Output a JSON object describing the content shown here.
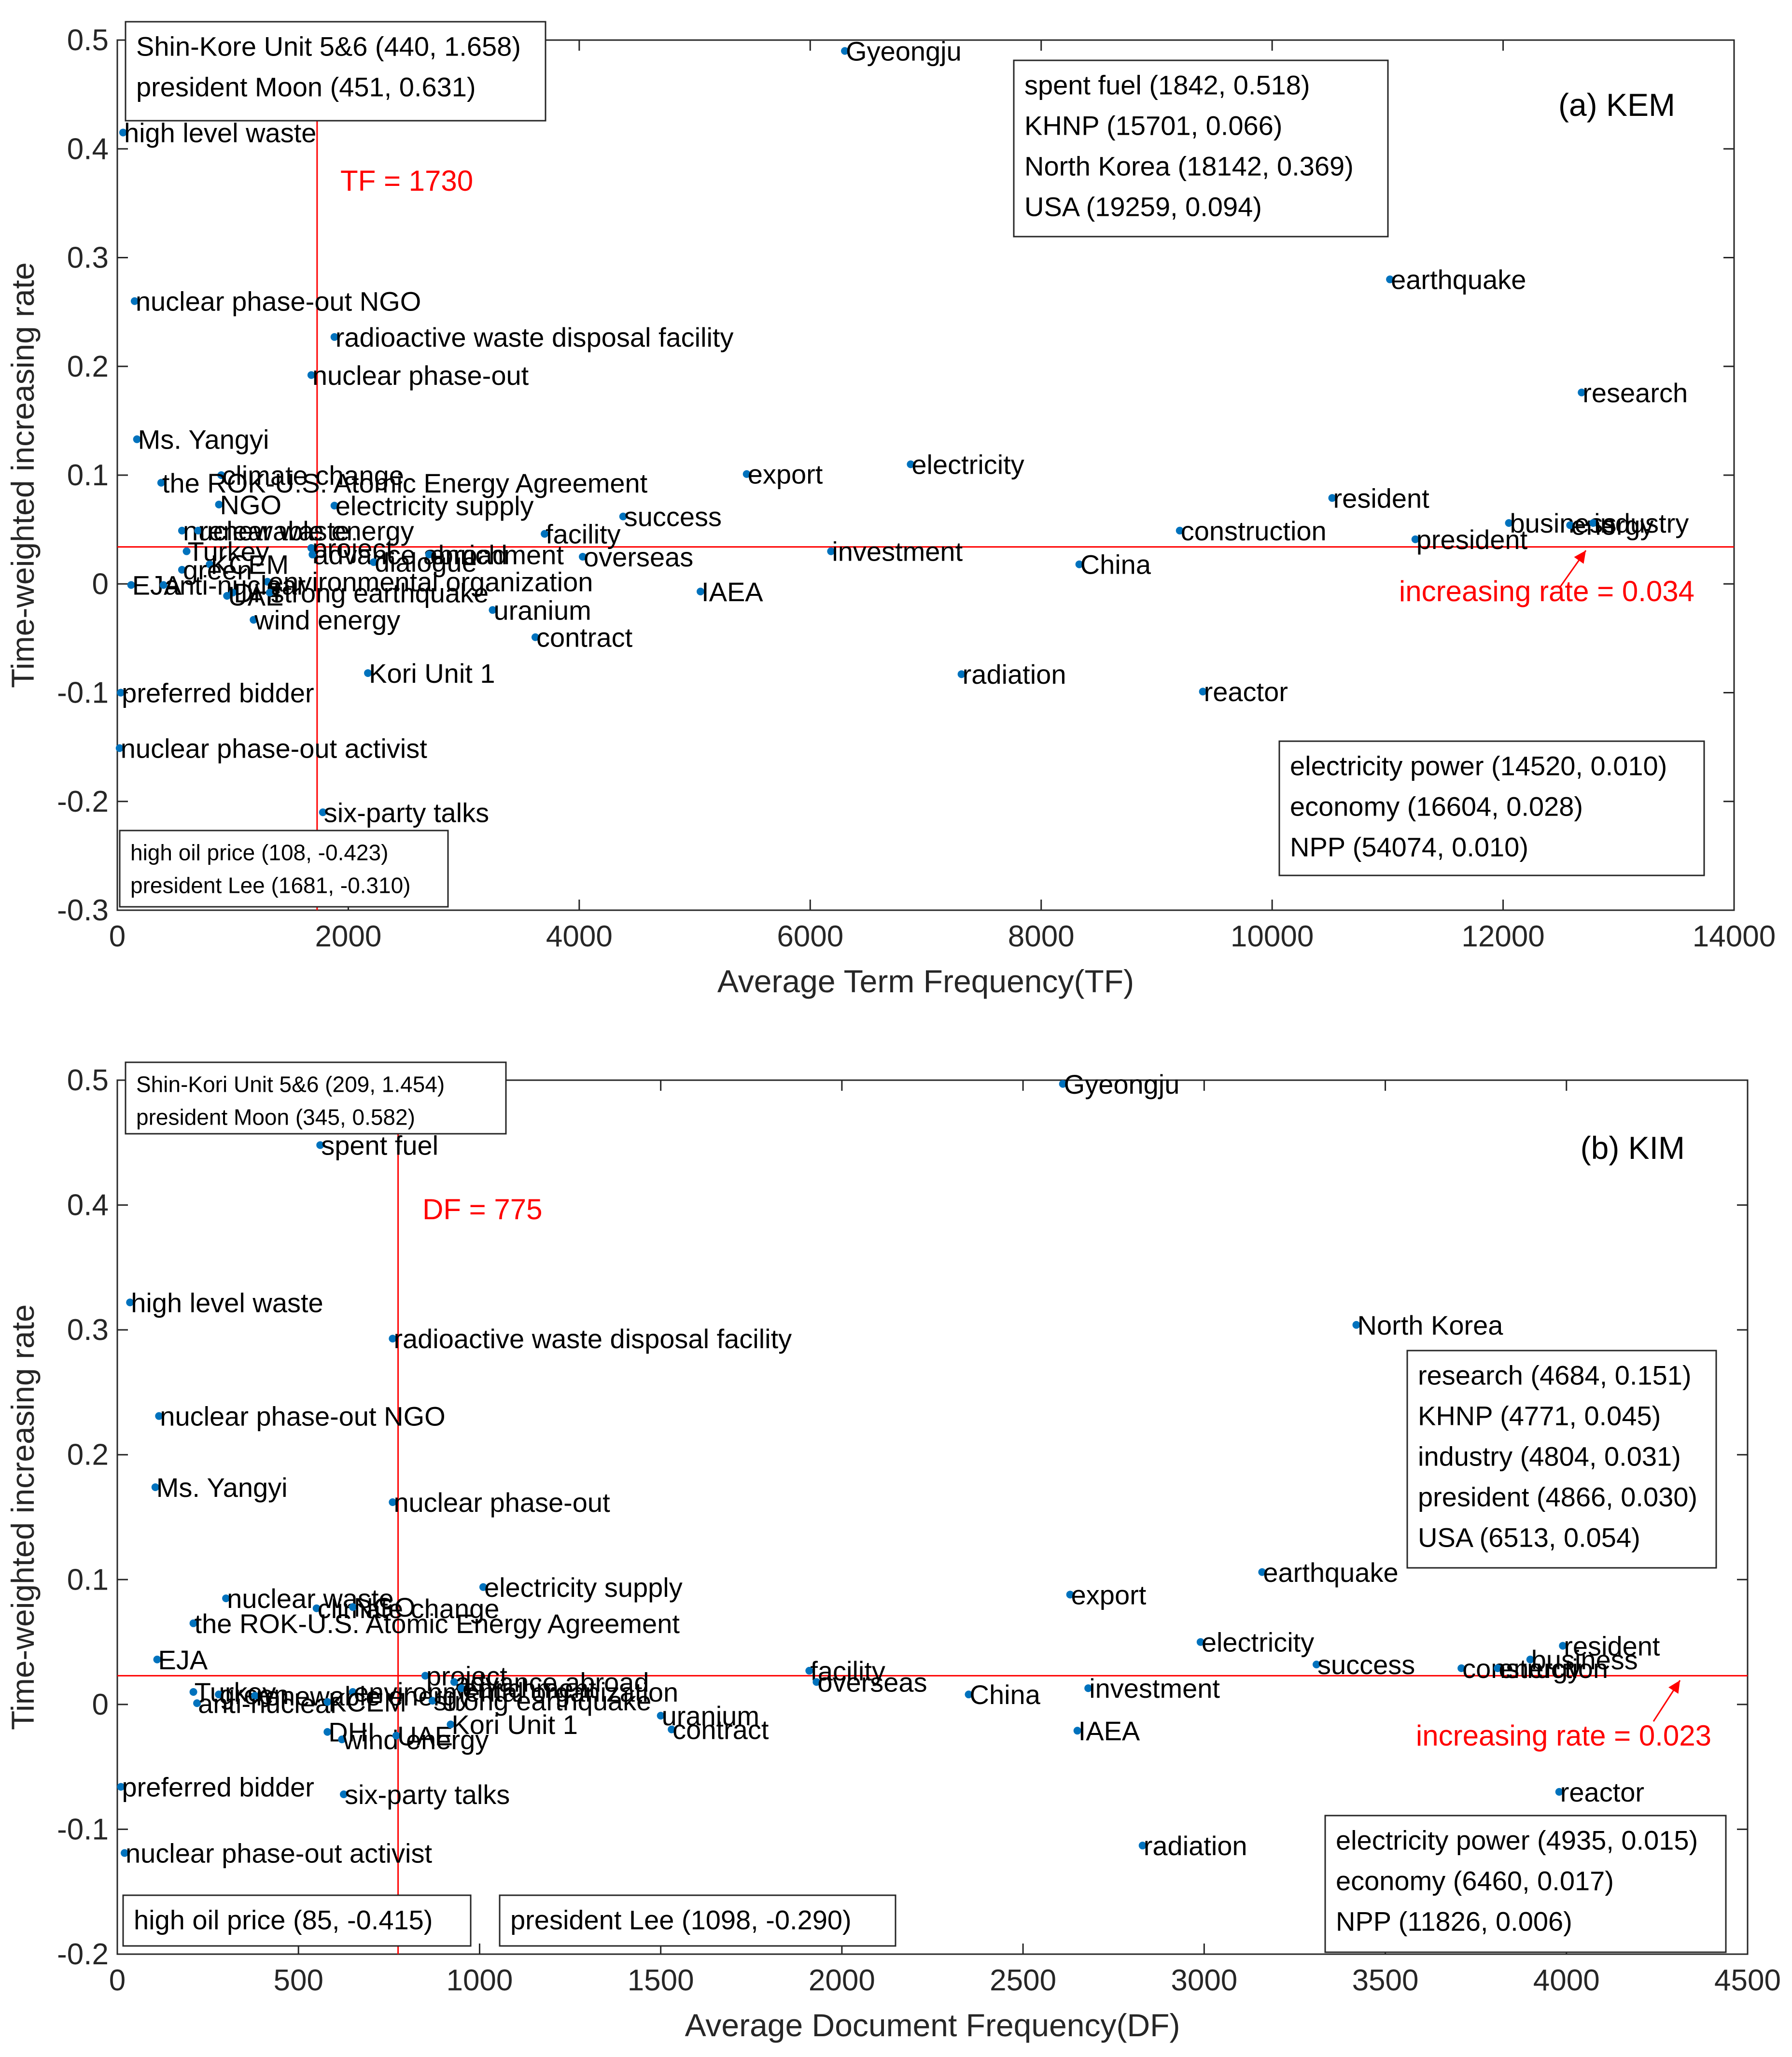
{
  "chart_data": [
    {
      "type": "scatter",
      "panel_label": "(a) KEM",
      "xlabel": "Average Term Frequency(TF)",
      "ylabel": "Time-weighted increasing rate",
      "xlim": [
        0,
        14000
      ],
      "ylim": [
        -0.3,
        0.5
      ],
      "xticks": [
        0,
        2000,
        4000,
        6000,
        8000,
        10000,
        12000,
        14000
      ],
      "yticks": [
        -0.3,
        -0.2,
        -0.1,
        0,
        0.1,
        0.2,
        0.3,
        0.4,
        0.5
      ],
      "ref_x": 1730,
      "ref_x_label": "TF = 1730",
      "ref_y": 0.034,
      "ref_y_label": "increasing rate = 0.034",
      "points": [
        {
          "label": "Gyeongju",
          "x": 6300,
          "y": 0.49
        },
        {
          "label": "high level waste",
          "x": 50,
          "y": 0.415
        },
        {
          "label": "nuclear phase-out NGO",
          "x": 150,
          "y": 0.26
        },
        {
          "label": "radioactive waste disposal facility",
          "x": 1880,
          "y": 0.227
        },
        {
          "label": "nuclear phase-out",
          "x": 1680,
          "y": 0.192
        },
        {
          "label": "Ms. Yangyi",
          "x": 170,
          "y": 0.133
        },
        {
          "label": "climate change",
          "x": 900,
          "y": 0.1
        },
        {
          "label": "the ROK-U.S. Atomic Energy Agreement",
          "x": 380,
          "y": 0.093
        },
        {
          "label": "NGO",
          "x": 880,
          "y": 0.073
        },
        {
          "label": "electricity supply",
          "x": 1880,
          "y": 0.072
        },
        {
          "label": "nuclear waste",
          "x": 560,
          "y": 0.049
        },
        {
          "label": "renewable energy",
          "x": 700,
          "y": 0.049
        },
        {
          "label": "project",
          "x": 1680,
          "y": 0.033
        },
        {
          "label": "Turkey",
          "x": 600,
          "y": 0.03
        },
        {
          "label": "advance abroad",
          "x": 1690,
          "y": 0.027
        },
        {
          "label": "enrichment",
          "x": 2700,
          "y": 0.027
        },
        {
          "label": "KCEM",
          "x": 800,
          "y": 0.018
        },
        {
          "label": "green",
          "x": 560,
          "y": 0.013
        },
        {
          "label": "dialogue",
          "x": 2220,
          "y": 0.02
        },
        {
          "label": "environmental organization",
          "x": 1300,
          "y": 0.002
        },
        {
          "label": "EJA",
          "x": 120,
          "y": -0.001
        },
        {
          "label": "anti-nuclear",
          "x": 400,
          "y": -0.001
        },
        {
          "label": "DHI",
          "x": 1000,
          "y": -0.008
        },
        {
          "label": "UAE",
          "x": 950,
          "y": -0.011
        },
        {
          "label": "strong earthquake",
          "x": 1320,
          "y": -0.008
        },
        {
          "label": "wind energy",
          "x": 1180,
          "y": -0.033
        },
        {
          "label": "success",
          "x": 4380,
          "y": 0.062
        },
        {
          "label": "facility",
          "x": 3700,
          "y": 0.046
        },
        {
          "label": "overseas",
          "x": 4030,
          "y": 0.025
        },
        {
          "label": "uranium",
          "x": 3250,
          "y": -0.024
        },
        {
          "label": "contract",
          "x": 3620,
          "y": -0.049
        },
        {
          "label": "Kori Unit 1",
          "x": 2170,
          "y": -0.082
        },
        {
          "label": "IAEA",
          "x": 5050,
          "y": -0.007
        },
        {
          "label": "export",
          "x": 5450,
          "y": 0.101
        },
        {
          "label": "investment",
          "x": 6180,
          "y": 0.03
        },
        {
          "label": "electricity",
          "x": 6870,
          "y": 0.11
        },
        {
          "label": "radiation",
          "x": 7310,
          "y": -0.083
        },
        {
          "label": "China",
          "x": 8330,
          "y": 0.018
        },
        {
          "label": "construction",
          "x": 9200,
          "y": 0.049
        },
        {
          "label": "reactor",
          "x": 9400,
          "y": -0.099
        },
        {
          "label": "earthquake",
          "x": 11020,
          "y": 0.28
        },
        {
          "label": "resident",
          "x": 10520,
          "y": 0.079
        },
        {
          "label": "president",
          "x": 11240,
          "y": 0.041
        },
        {
          "label": "business",
          "x": 12050,
          "y": 0.056
        },
        {
          "label": "energy",
          "x": 12580,
          "y": 0.054
        },
        {
          "label": "industry",
          "x": 12780,
          "y": 0.056
        },
        {
          "label": "research",
          "x": 12680,
          "y": 0.176
        },
        {
          "label": "preferred bidder",
          "x": 30,
          "y": -0.1
        },
        {
          "label": "nuclear phase-out activist",
          "x": 20,
          "y": -0.151
        },
        {
          "label": "six-party talks",
          "x": 1780,
          "y": -0.21
        }
      ],
      "boxes": [
        {
          "lines": [
            "Shin-Kore Unit 5&6 (440, 1.658)",
            "president Moon (451, 0.631)"
          ]
        },
        {
          "lines": [
            "spent fuel (1842, 0.518)",
            "KHNP (15701, 0.066)",
            "North Korea (18142, 0.369)",
            "USA (19259, 0.094)"
          ]
        },
        {
          "lines": [
            "electricity power (14520, 0.010)",
            "economy (16604, 0.028)",
            "NPP (54074, 0.010)"
          ]
        },
        {
          "lines": [
            "high oil price (108, -0.423)",
            "president Lee (1681, -0.310)"
          ]
        }
      ]
    },
    {
      "type": "scatter",
      "panel_label": "(b) KIM",
      "xlabel": "Average Document Frequency(DF)",
      "ylabel": "Time-weighted increasing rate",
      "xlim": [
        0,
        4500
      ],
      "ylim": [
        -0.2,
        0.5
      ],
      "xticks": [
        0,
        500,
        1000,
        1500,
        2000,
        2500,
        3000,
        3500,
        4000,
        4500
      ],
      "yticks": [
        -0.2,
        -0.1,
        0,
        0.1,
        0.2,
        0.3,
        0.4,
        0.5
      ],
      "ref_x": 775,
      "ref_x_label": "DF = 775",
      "ref_y": 0.023,
      "ref_y_label": "increasing rate = 0.023",
      "points": [
        {
          "label": "Gyeongju",
          "x": 2610,
          "y": 0.497
        },
        {
          "label": "spent fuel",
          "x": 560,
          "y": 0.448
        },
        {
          "label": "high level waste",
          "x": 35,
          "y": 0.322
        },
        {
          "label": "radioactive waste disposal facility",
          "x": 760,
          "y": 0.293
        },
        {
          "label": "nuclear phase-out NGO",
          "x": 115,
          "y": 0.231
        },
        {
          "label": "Ms. Yangyi",
          "x": 105,
          "y": 0.174
        },
        {
          "label": "nuclear phase-out",
          "x": 760,
          "y": 0.162
        },
        {
          "label": "electricity supply",
          "x": 1010,
          "y": 0.094
        },
        {
          "label": "nuclear waste",
          "x": 300,
          "y": 0.085
        },
        {
          "label": "climate change",
          "x": 550,
          "y": 0.077
        },
        {
          "label": "NGO",
          "x": 650,
          "y": 0.078
        },
        {
          "label": "the ROK-U.S. Atomic Energy Agreement",
          "x": 210,
          "y": 0.065
        },
        {
          "label": "EJA",
          "x": 110,
          "y": 0.036
        },
        {
          "label": "project",
          "x": 850,
          "y": 0.023
        },
        {
          "label": "advance abroad",
          "x": 930,
          "y": 0.018
        },
        {
          "label": "Turkey",
          "x": 210,
          "y": 0.01
        },
        {
          "label": "green",
          "x": 280,
          "y": 0.008
        },
        {
          "label": "renewable energy",
          "x": 380,
          "y": 0.007
        },
        {
          "label": "environmental organization",
          "x": 650,
          "y": 0.01
        },
        {
          "label": "enrichment",
          "x": 950,
          "y": 0.013
        },
        {
          "label": "anti-nuclear",
          "x": 220,
          "y": 0.001
        },
        {
          "label": "KCEM",
          "x": 580,
          "y": 0.002
        },
        {
          "label": "strong earthquake",
          "x": 870,
          "y": 0.003
        },
        {
          "label": "DHI",
          "x": 580,
          "y": -0.022
        },
        {
          "label": "wind energy",
          "x": 620,
          "y": -0.028
        },
        {
          "label": "UAE",
          "x": 770,
          "y": -0.025
        },
        {
          "label": "Kori Unit 1",
          "x": 920,
          "y": -0.016
        },
        {
          "label": "uranium",
          "x": 1500,
          "y": -0.009
        },
        {
          "label": "contract",
          "x": 1530,
          "y": -0.02
        },
        {
          "label": "facility",
          "x": 1910,
          "y": 0.027
        },
        {
          "label": "overseas",
          "x": 1930,
          "y": 0.018
        },
        {
          "label": "China",
          "x": 2350,
          "y": 0.008
        },
        {
          "label": "export",
          "x": 2630,
          "y": 0.088
        },
        {
          "label": "investment",
          "x": 2680,
          "y": 0.013
        },
        {
          "label": "IAEA",
          "x": 2650,
          "y": -0.021
        },
        {
          "label": "radiation",
          "x": 2830,
          "y": -0.113
        },
        {
          "label": "electricity",
          "x": 2990,
          "y": 0.05
        },
        {
          "label": "earthquake",
          "x": 3160,
          "y": 0.106
        },
        {
          "label": "success",
          "x": 3310,
          "y": 0.032
        },
        {
          "label": "North Korea",
          "x": 3420,
          "y": 0.304
        },
        {
          "label": "construction",
          "x": 3710,
          "y": 0.029
        },
        {
          "label": "energy",
          "x": 3810,
          "y": 0.029
        },
        {
          "label": "business",
          "x": 3900,
          "y": 0.036
        },
        {
          "label": "resident",
          "x": 3990,
          "y": 0.047
        },
        {
          "label": "reactor",
          "x": 3980,
          "y": -0.07
        },
        {
          "label": "preferred bidder",
          "x": 10,
          "y": -0.066
        },
        {
          "label": "nuclear phase-out activist",
          "x": 20,
          "y": -0.119
        },
        {
          "label": "six-party talks",
          "x": 625,
          "y": -0.072
        }
      ],
      "boxes": [
        {
          "lines": [
            "Shin-Kori Unit 5&6 (209, 1.454)",
            "president Moon (345, 0.582)"
          ]
        },
        {
          "lines": [
            "research (4684, 0.151)",
            "KHNP (4771, 0.045)",
            "industry (4804, 0.031)",
            "president (4866, 0.030)",
            "USA (6513, 0.054)"
          ]
        },
        {
          "lines": [
            "electricity power (4935, 0.015)",
            "economy (6460, 0.017)",
            "NPP (11826, 0.006)"
          ]
        },
        {
          "lines": [
            "high oil price (85, -0.415)"
          ]
        },
        {
          "lines": [
            "president Lee (1098, -0.290)"
          ]
        }
      ]
    }
  ],
  "colors": {
    "point": "#0072bd",
    "reference": "#ff0000",
    "axis": "#262626"
  }
}
